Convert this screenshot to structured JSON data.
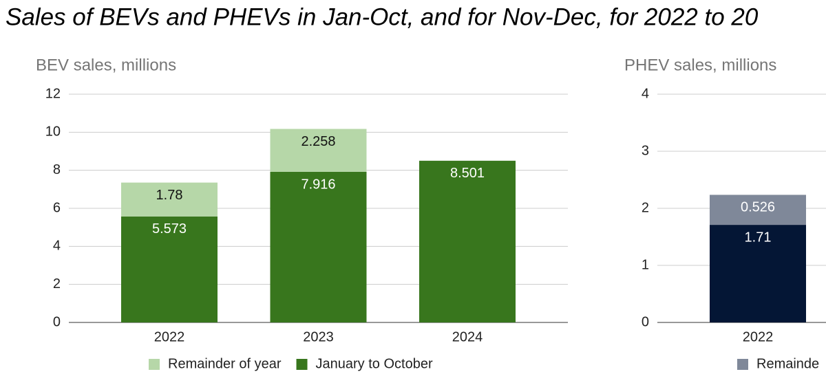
{
  "title": "Sales of BEVs and PHEVs in Jan-Oct, and for Nov-Dec, for 2022 to 20",
  "chart_data": [
    {
      "type": "bar",
      "stacked": true,
      "title": "BEV sales, millions",
      "categories": [
        "2022",
        "2023",
        "2024"
      ],
      "series": [
        {
          "name": "Remainder of year",
          "color": "#b6d7a8",
          "values": [
            1.78,
            2.258,
            null
          ]
        },
        {
          "name": "January to October",
          "color": "#38761d",
          "values": [
            5.573,
            7.916,
            8.501
          ]
        }
      ],
      "ylim": [
        0,
        12
      ],
      "yticks": [
        0,
        2,
        4,
        6,
        8,
        10,
        12
      ],
      "grid": true
    },
    {
      "type": "bar",
      "stacked": true,
      "title": "PHEV sales, millions",
      "categories": [
        "2022"
      ],
      "series": [
        {
          "name": "Remainde",
          "color": "#7f8899",
          "values": [
            0.526
          ]
        },
        {
          "color": "#041635",
          "values": [
            1.71
          ]
        }
      ],
      "ylim": [
        0,
        4
      ],
      "yticks": [
        0,
        1,
        2,
        3,
        4
      ],
      "grid": true
    }
  ]
}
